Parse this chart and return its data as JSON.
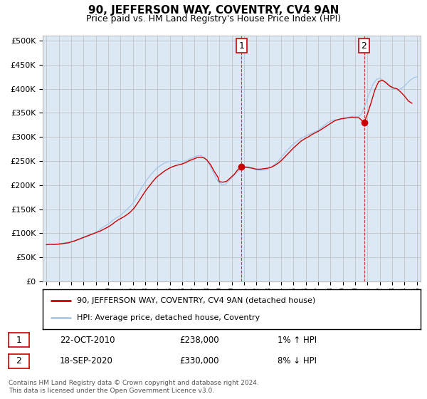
{
  "title": "90, JEFFERSON WAY, COVENTRY, CV4 9AN",
  "subtitle": "Price paid vs. HM Land Registry's House Price Index (HPI)",
  "plot_bg_color": "#dce9f5",
  "ylim": [
    0,
    510000
  ],
  "yticks": [
    0,
    50000,
    100000,
    150000,
    200000,
    250000,
    300000,
    350000,
    400000,
    450000,
    500000
  ],
  "xlim_start": 1994.7,
  "xlim_end": 2025.3,
  "xticks": [
    1995,
    1996,
    1997,
    1998,
    1999,
    2000,
    2001,
    2002,
    2003,
    2004,
    2005,
    2006,
    2007,
    2008,
    2009,
    2010,
    2011,
    2012,
    2013,
    2014,
    2015,
    2016,
    2017,
    2018,
    2019,
    2020,
    2021,
    2022,
    2023,
    2024,
    2025
  ],
  "hpi_color": "#a8c8e8",
  "price_color": "#cc0000",
  "marker_color": "#cc0000",
  "dashed_line_color": "#cc0000",
  "annotation_box_color": "#cc0000",
  "transaction1": {
    "date": "22-OCT-2010",
    "year": 2010.8,
    "price": 238000,
    "label": "1",
    "pct": "1% ↑ HPI"
  },
  "transaction2": {
    "date": "18-SEP-2020",
    "year": 2020.72,
    "price": 330000,
    "label": "2",
    "pct": "8% ↓ HPI"
  },
  "hpi_data_years": [
    1995.0,
    1995.25,
    1995.5,
    1995.75,
    1996.0,
    1996.25,
    1996.5,
    1996.75,
    1997.0,
    1997.25,
    1997.5,
    1997.75,
    1998.0,
    1998.25,
    1998.5,
    1998.75,
    1999.0,
    1999.25,
    1999.5,
    1999.75,
    2000.0,
    2000.25,
    2000.5,
    2000.75,
    2001.0,
    2001.25,
    2001.5,
    2001.75,
    2002.0,
    2002.25,
    2002.5,
    2002.75,
    2003.0,
    2003.25,
    2003.5,
    2003.75,
    2004.0,
    2004.25,
    2004.5,
    2004.75,
    2005.0,
    2005.25,
    2005.5,
    2005.75,
    2006.0,
    2006.25,
    2006.5,
    2006.75,
    2007.0,
    2007.25,
    2007.5,
    2007.75,
    2008.0,
    2008.25,
    2008.5,
    2008.75,
    2009.0,
    2009.25,
    2009.5,
    2009.75,
    2010.0,
    2010.25,
    2010.5,
    2010.75,
    2011.0,
    2011.25,
    2011.5,
    2011.75,
    2012.0,
    2012.25,
    2012.5,
    2012.75,
    2013.0,
    2013.25,
    2013.5,
    2013.75,
    2014.0,
    2014.25,
    2014.5,
    2014.75,
    2015.0,
    2015.25,
    2015.5,
    2015.75,
    2016.0,
    2016.25,
    2016.5,
    2016.75,
    2017.0,
    2017.25,
    2017.5,
    2017.75,
    2018.0,
    2018.25,
    2018.5,
    2018.75,
    2019.0,
    2019.25,
    2019.5,
    2019.75,
    2020.0,
    2020.25,
    2020.5,
    2020.75,
    2021.0,
    2021.25,
    2021.5,
    2021.75,
    2022.0,
    2022.25,
    2022.5,
    2022.75,
    2023.0,
    2023.25,
    2023.5,
    2023.75,
    2024.0,
    2024.25,
    2024.5,
    2024.75,
    2025.0
  ],
  "hpi_data_values": [
    76000,
    76500,
    77000,
    77500,
    78000,
    79000,
    80000,
    81000,
    82000,
    84000,
    87000,
    89000,
    92000,
    94000,
    97000,
    99000,
    101000,
    106000,
    111000,
    115000,
    119000,
    124000,
    129000,
    133000,
    137000,
    143000,
    149000,
    155000,
    162000,
    173000,
    185000,
    196000,
    206000,
    215000,
    223000,
    230000,
    236000,
    241000,
    245000,
    248000,
    249000,
    250000,
    250000,
    249000,
    249000,
    250000,
    253000,
    256000,
    259000,
    261000,
    261000,
    257000,
    251000,
    240000,
    227000,
    214000,
    205000,
    200000,
    202000,
    208000,
    215000,
    222000,
    228000,
    234000,
    238000,
    239000,
    237000,
    234000,
    232000,
    231000,
    231000,
    232000,
    234000,
    238000,
    243000,
    249000,
    257000,
    265000,
    272000,
    279000,
    285000,
    290000,
    295000,
    299000,
    302000,
    305000,
    308000,
    311000,
    314000,
    319000,
    324000,
    329000,
    333000,
    335000,
    336000,
    336000,
    337000,
    339000,
    341000,
    343000,
    343000,
    342000,
    347000,
    362000,
    380000,
    398000,
    412000,
    420000,
    422000,
    418000,
    412000,
    406000,
    401000,
    399000,
    398000,
    401000,
    406000,
    413000,
    419000,
    423000,
    425000
  ],
  "price_paid_years": [
    1995.0,
    1995.3,
    1995.6,
    1995.9,
    1996.2,
    1996.5,
    1996.8,
    1997.0,
    1997.3,
    1997.6,
    1997.9,
    1998.2,
    1998.5,
    1998.8,
    1999.1,
    1999.4,
    1999.7,
    2000.0,
    2000.3,
    2000.6,
    2000.9,
    2001.2,
    2001.5,
    2001.8,
    2002.1,
    2002.4,
    2002.7,
    2003.0,
    2003.3,
    2003.6,
    2003.9,
    2004.2,
    2004.5,
    2004.8,
    2005.1,
    2005.4,
    2005.7,
    2006.0,
    2006.3,
    2006.6,
    2006.9,
    2007.2,
    2007.5,
    2007.8,
    2008.0,
    2008.3,
    2008.6,
    2008.9,
    2009.0,
    2009.3,
    2009.6,
    2009.9,
    2010.2,
    2010.5,
    2010.8,
    2011.1,
    2011.4,
    2011.7,
    2012.0,
    2012.3,
    2012.6,
    2012.9,
    2013.2,
    2013.5,
    2013.8,
    2014.1,
    2014.4,
    2014.7,
    2015.0,
    2015.3,
    2015.6,
    2015.9,
    2016.2,
    2016.5,
    2016.8,
    2017.1,
    2017.4,
    2017.7,
    2018.0,
    2018.3,
    2018.6,
    2018.9,
    2019.2,
    2019.5,
    2019.8,
    2020.0,
    2020.3,
    2020.72,
    2021.0,
    2021.3,
    2021.6,
    2021.9,
    2022.2,
    2022.5,
    2022.8,
    2023.1,
    2023.4,
    2023.7,
    2024.0,
    2024.3,
    2024.6
  ],
  "price_paid_values": [
    76000,
    77000,
    76500,
    77000,
    78000,
    79000,
    80000,
    82000,
    84000,
    87000,
    90000,
    93000,
    96000,
    99000,
    102000,
    105000,
    109000,
    113000,
    118000,
    124000,
    129000,
    133000,
    138000,
    144000,
    152000,
    163000,
    175000,
    187000,
    197000,
    207000,
    216000,
    222000,
    228000,
    233000,
    237000,
    240000,
    242000,
    244000,
    247000,
    251000,
    254000,
    257000,
    258000,
    256000,
    252000,
    242000,
    228000,
    216000,
    207000,
    206000,
    208000,
    215000,
    222000,
    232000,
    238000,
    237000,
    236000,
    235000,
    233000,
    233000,
    234000,
    235000,
    237000,
    241000,
    246000,
    253000,
    261000,
    269000,
    277000,
    284000,
    291000,
    296000,
    300000,
    305000,
    309000,
    313000,
    318000,
    323000,
    328000,
    333000,
    336000,
    338000,
    339000,
    340000,
    341000,
    340000,
    340000,
    330000,
    348000,
    372000,
    398000,
    415000,
    418000,
    413000,
    406000,
    402000,
    400000,
    393000,
    385000,
    375000,
    370000
  ],
  "footnote": "Contains HM Land Registry data © Crown copyright and database right 2024.\nThis data is licensed under the Open Government Licence v3.0.",
  "legend_label1": "90, JEFFERSON WAY, COVENTRY, CV4 9AN (detached house)",
  "legend_label2": "HPI: Average price, detached house, Coventry"
}
